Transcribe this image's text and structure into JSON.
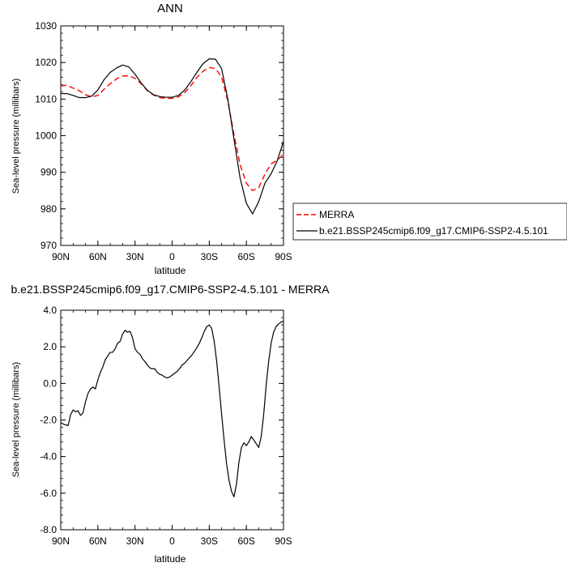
{
  "chart_data": [
    {
      "type": "line",
      "title": "ANN",
      "xlabel": "latitude",
      "ylabel": "Sea-level pressure (millibars)",
      "xlim": [
        90,
        -90
      ],
      "ylim": [
        970,
        1030
      ],
      "x_tick_values": [
        90,
        60,
        30,
        0,
        -30,
        -60,
        -90
      ],
      "x_tick_labels": [
        "90N",
        "60N",
        "30N",
        "0",
        "30S",
        "60S",
        "90S"
      ],
      "y_tick_values": [
        970,
        980,
        990,
        1000,
        1010,
        1020,
        1030
      ],
      "y_tick_labels": [
        "970",
        "980",
        "990",
        "1000",
        "1010",
        "1020",
        "1030"
      ],
      "grid": false,
      "legend_position": "right",
      "series": [
        {
          "name": "MERRA",
          "color": "#ff0000",
          "dash": "dashed",
          "x": [
            90,
            85,
            80,
            75,
            70,
            65,
            60,
            55,
            50,
            45,
            40,
            35,
            30,
            25,
            20,
            15,
            10,
            5,
            0,
            -5,
            -10,
            -15,
            -20,
            -25,
            -30,
            -35,
            -40,
            -45,
            -50,
            -55,
            -60,
            -65,
            -70,
            -75,
            -80,
            -85,
            -90
          ],
          "y": [
            1013.6,
            1013.8,
            1013.0,
            1012.3,
            1011.2,
            1010.6,
            1011.0,
            1012.7,
            1014.2,
            1015.5,
            1016.3,
            1016.4,
            1015.7,
            1014.2,
            1012.3,
            1011.1,
            1010.4,
            1010.2,
            1010.2,
            1010.6,
            1011.7,
            1013.6,
            1015.9,
            1017.6,
            1018.6,
            1018.4,
            1016.0,
            1009.5,
            1000.3,
            992.0,
            987.0,
            985.0,
            985.8,
            989.5,
            992.3,
            993.3,
            995.0
          ]
        },
        {
          "name": "b.e21.BSSP245cmip6.f09_g17.CMIP6-SSP2-4.5.101",
          "color": "#000000",
          "dash": "solid",
          "x": [
            90,
            85,
            80,
            75,
            70,
            65,
            60,
            55,
            50,
            45,
            40,
            35,
            30,
            25,
            20,
            15,
            10,
            5,
            0,
            -5,
            -10,
            -15,
            -20,
            -25,
            -30,
            -35,
            -40,
            -45,
            -50,
            -55,
            -60,
            -65,
            -70,
            -75,
            -80,
            -85,
            -90
          ],
          "y": [
            1011.5,
            1011.5,
            1011.0,
            1010.4,
            1010.4,
            1010.8,
            1012.5,
            1015.3,
            1017.3,
            1018.5,
            1019.3,
            1018.8,
            1016.8,
            1014.4,
            1012.4,
            1011.2,
            1010.7,
            1010.5,
            1010.5,
            1011.0,
            1012.4,
            1014.7,
            1017.3,
            1019.7,
            1021.0,
            1020.9,
            1018.3,
            1010.0,
            999.0,
            988.3,
            981.5,
            978.6,
            982.0,
            987.0,
            989.6,
            993.2,
            998.5
          ]
        }
      ]
    },
    {
      "type": "line",
      "title": "b.e21.BSSP245cmip6.f09_g17.CMIP6-SSP2-4.5.101 - MERRA",
      "xlabel": "latitude",
      "ylabel": "Sea-level pressure (millibars)",
      "xlim": [
        90,
        -90
      ],
      "ylim": [
        -8.0,
        4.0
      ],
      "x_tick_values": [
        90,
        60,
        30,
        0,
        -30,
        -60,
        -90
      ],
      "x_tick_labels": [
        "90N",
        "60N",
        "30N",
        "0",
        "30S",
        "60S",
        "90S"
      ],
      "y_tick_values": [
        -8,
        -6,
        -4,
        -2,
        0,
        2,
        4
      ],
      "y_tick_labels": [
        "-8.0",
        "-6.0",
        "-4.0",
        "-2.0",
        "0.0",
        "2.0",
        "4.0"
      ],
      "grid": false,
      "series": [
        {
          "color": "#000000",
          "dash": "solid",
          "x": [
            90,
            87,
            84,
            82,
            80,
            78,
            76,
            74,
            72,
            70,
            68,
            66,
            64,
            62,
            60,
            58,
            56,
            54,
            52,
            50,
            48,
            46,
            44,
            42,
            40,
            38,
            36,
            34,
            32,
            30,
            28,
            26,
            24,
            22,
            20,
            18,
            16,
            14,
            12,
            10,
            8,
            6,
            4,
            2,
            0,
            -2,
            -4,
            -6,
            -8,
            -10,
            -12,
            -14,
            -16,
            -18,
            -20,
            -22,
            -24,
            -26,
            -28,
            -30,
            -32,
            -34,
            -36,
            -38,
            -40,
            -42,
            -44,
            -46,
            -48,
            -50,
            -52,
            -54,
            -56,
            -58,
            -60,
            -62,
            -64,
            -66,
            -68,
            -70,
            -72,
            -74,
            -76,
            -78,
            -80,
            -82,
            -84,
            -86,
            -88,
            -90
          ],
          "y": [
            -2.15,
            -2.25,
            -2.3,
            -1.7,
            -1.45,
            -1.55,
            -1.5,
            -1.75,
            -1.6,
            -1.0,
            -0.55,
            -0.3,
            -0.2,
            -0.3,
            0.2,
            0.6,
            0.9,
            1.3,
            1.5,
            1.7,
            1.7,
            1.9,
            2.2,
            2.3,
            2.7,
            2.9,
            2.8,
            2.85,
            2.5,
            1.9,
            1.7,
            1.6,
            1.35,
            1.2,
            1.0,
            0.85,
            0.8,
            0.8,
            0.6,
            0.5,
            0.45,
            0.35,
            0.3,
            0.35,
            0.45,
            0.55,
            0.65,
            0.8,
            1.0,
            1.1,
            1.25,
            1.4,
            1.55,
            1.75,
            1.95,
            2.2,
            2.5,
            2.85,
            3.1,
            3.2,
            3.0,
            2.3,
            1.2,
            -0.2,
            -1.7,
            -3.1,
            -4.4,
            -5.3,
            -5.9,
            -6.2,
            -5.5,
            -4.3,
            -3.5,
            -3.25,
            -3.4,
            -3.2,
            -2.9,
            -3.1,
            -3.3,
            -3.5,
            -2.9,
            -1.7,
            -0.1,
            1.2,
            2.2,
            2.8,
            3.1,
            3.25,
            3.35,
            3.4
          ]
        }
      ]
    }
  ]
}
